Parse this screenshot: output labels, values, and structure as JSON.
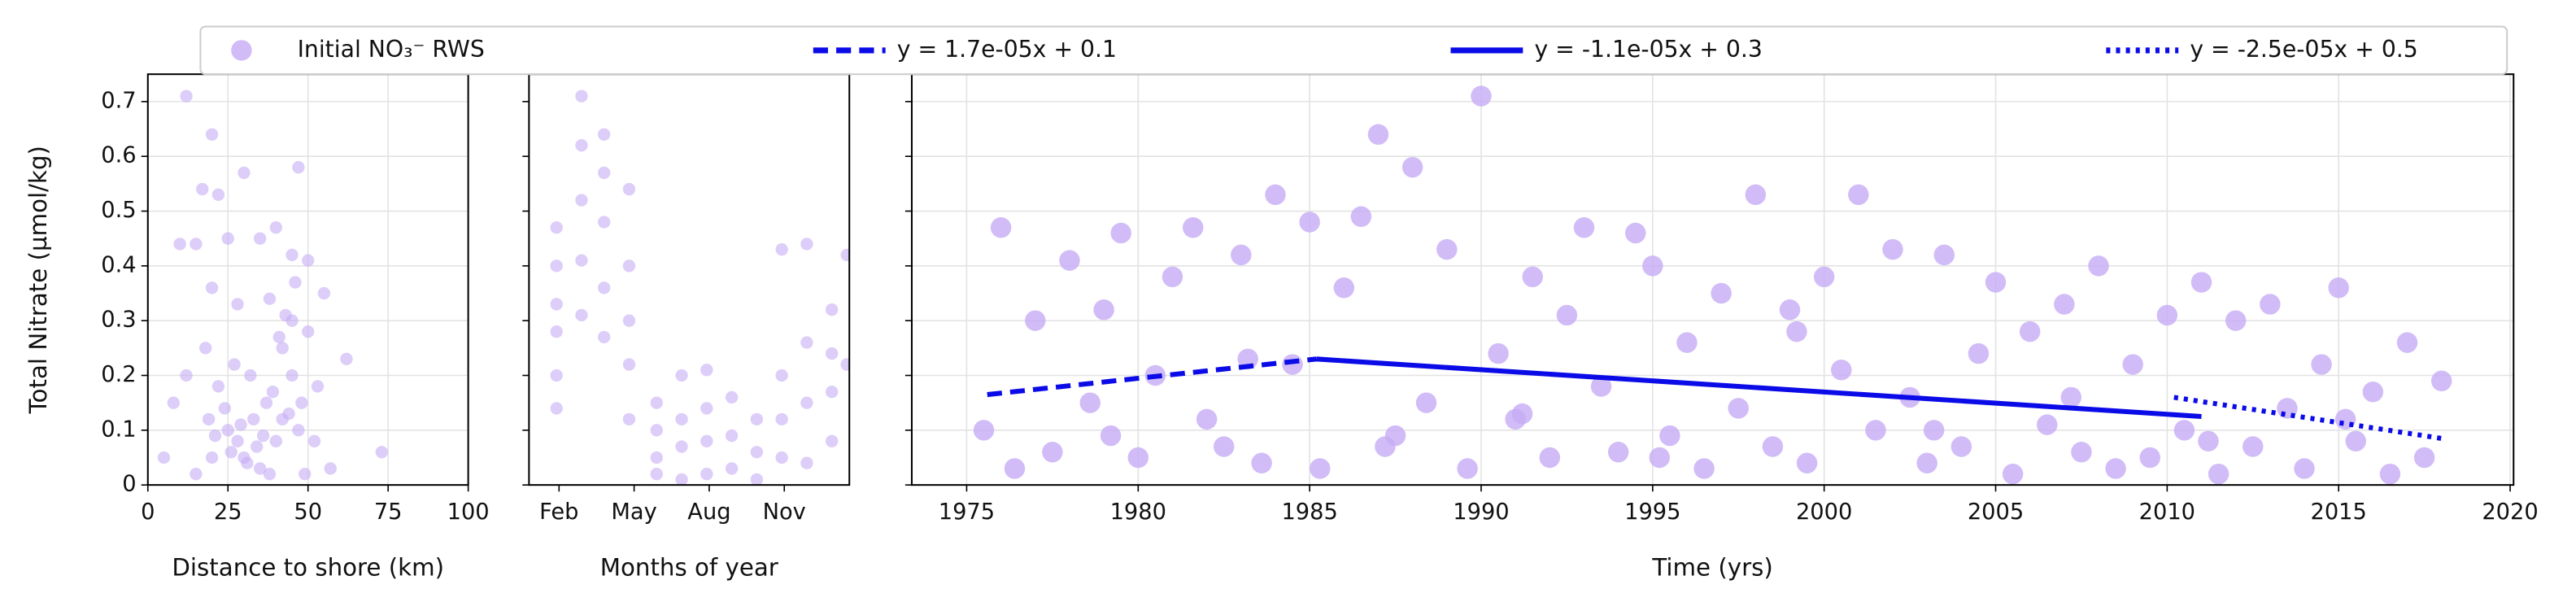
{
  "chart_data": [
    {
      "type": "scatter",
      "xlabel": "Distance to shore (km)",
      "ylabel": "Total Nitrate (µmol/kg)",
      "xlim": [
        0,
        100
      ],
      "xticks": [
        0,
        25,
        50,
        75,
        100
      ],
      "ylim": [
        0,
        0.75
      ],
      "yticks": [
        0,
        0.1,
        0.2,
        0.3,
        0.4,
        0.5,
        0.6,
        0.7
      ],
      "ytick_labels": true,
      "grid": true,
      "series": [
        {
          "kind": "scatter",
          "color": "#c6abf5",
          "x": [
            12,
            20,
            17,
            47,
            22,
            30,
            40,
            45,
            10,
            15,
            25,
            35,
            50,
            55,
            20,
            28,
            38,
            45,
            50,
            8,
            12,
            18,
            22,
            27,
            32,
            37,
            42,
            47,
            52,
            57,
            62,
            73,
            25,
            30,
            35,
            40,
            20,
            15,
            45,
            33,
            28,
            5,
            48,
            42,
            38,
            31,
            26,
            36,
            44,
            49,
            24,
            34,
            29,
            39,
            43,
            21,
            53,
            46,
            41,
            19
          ],
          "values": [
            0.71,
            0.64,
            0.54,
            0.58,
            0.53,
            0.57,
            0.47,
            0.42,
            0.44,
            0.44,
            0.45,
            0.45,
            0.41,
            0.35,
            0.36,
            0.33,
            0.34,
            0.3,
            0.28,
            0.15,
            0.2,
            0.25,
            0.18,
            0.22,
            0.2,
            0.15,
            0.12,
            0.1,
            0.08,
            0.03,
            0.23,
            0.06,
            0.1,
            0.05,
            0.03,
            0.08,
            0.05,
            0.02,
            0.2,
            0.12,
            0.08,
            0.05,
            0.15,
            0.25,
            0.02,
            0.04,
            0.06,
            0.09,
            0.13,
            0.02,
            0.14,
            0.07,
            0.11,
            0.17,
            0.31,
            0.09,
            0.18,
            0.37,
            0.27,
            0.12
          ]
        }
      ]
    },
    {
      "type": "scatter",
      "xlabel": "Months of year",
      "xlim": [
        0.8,
        13.6
      ],
      "xticks": [
        {
          "value": 2,
          "label": "Feb"
        },
        {
          "value": 5,
          "label": "May"
        },
        {
          "value": 8,
          "label": "Aug"
        },
        {
          "value": 11,
          "label": "Nov"
        }
      ],
      "ylim": [
        0,
        0.75
      ],
      "yticks": [
        0,
        0.1,
        0.2,
        0.3,
        0.4,
        0.5,
        0.6,
        0.7
      ],
      "ytick_labels": false,
      "grid": false,
      "series": [
        {
          "kind": "scatter",
          "color": "#c6abf5",
          "x": [
            1.9,
            1.9,
            1.9,
            1.9,
            1.9,
            1.9,
            2.9,
            2.9,
            2.9,
            2.9,
            2.9,
            3.8,
            3.8,
            3.8,
            3.8,
            3.8,
            4.8,
            4.8,
            4.8,
            4.8,
            4.8,
            5.9,
            5.9,
            5.9,
            5.9,
            6.9,
            6.9,
            6.9,
            6.9,
            7.9,
            7.9,
            7.9,
            7.9,
            8.9,
            8.9,
            8.9,
            9.9,
            9.9,
            9.9,
            10.9,
            10.9,
            10.9,
            10.9,
            11.9,
            11.9,
            11.9,
            11.9,
            12.9,
            12.9,
            12.9,
            12.9,
            13.5,
            13.5
          ],
          "values": [
            0.47,
            0.4,
            0.33,
            0.28,
            0.2,
            0.14,
            0.71,
            0.62,
            0.52,
            0.41,
            0.31,
            0.64,
            0.57,
            0.48,
            0.36,
            0.27,
            0.54,
            0.4,
            0.3,
            0.22,
            0.12,
            0.15,
            0.1,
            0.05,
            0.02,
            0.2,
            0.12,
            0.07,
            0.01,
            0.21,
            0.14,
            0.08,
            0.02,
            0.16,
            0.09,
            0.03,
            0.12,
            0.06,
            0.01,
            0.43,
            0.2,
            0.12,
            0.05,
            0.44,
            0.26,
            0.15,
            0.04,
            0.32,
            0.24,
            0.17,
            0.08,
            0.42,
            0.22
          ]
        }
      ]
    },
    {
      "type": "scatter",
      "xlabel": "Time (yrs)",
      "xlim": [
        1973.4,
        2020.1
      ],
      "xticks": [
        1975,
        1980,
        1985,
        1990,
        1995,
        2000,
        2005,
        2010,
        2015,
        2020
      ],
      "ylim": [
        0,
        0.75
      ],
      "yticks": [
        0,
        0.1,
        0.2,
        0.3,
        0.4,
        0.5,
        0.6,
        0.7
      ],
      "ytick_labels": false,
      "grid": true,
      "series": [
        {
          "kind": "scatter",
          "name": "Initial NO₃⁻ RWS",
          "color": "#c6abf5",
          "x": [
            1975.5,
            1976,
            1976.4,
            1977,
            1977.5,
            1978,
            1978.6,
            1979,
            1979.5,
            1980,
            1980.5,
            1981,
            1981.6,
            1982,
            1982.5,
            1983,
            1983.6,
            1984,
            1984.5,
            1985,
            1985.3,
            1986,
            1986.5,
            1987,
            1987.5,
            1988,
            1988.4,
            1989,
            1989.6,
            1990,
            1990.5,
            1991,
            1991.5,
            1992,
            1992.5,
            1993,
            1993.5,
            1994,
            1994.5,
            1995,
            1995.5,
            1996,
            1996.5,
            1997,
            1997.5,
            1998,
            1998.5,
            1999,
            1999.5,
            2000,
            2000.5,
            2001,
            2001.5,
            2002,
            2002.5,
            2003,
            2003.5,
            2004,
            2004.5,
            2005,
            2005.5,
            2006,
            2006.5,
            2007,
            2007.5,
            2008,
            2008.5,
            2009,
            2009.5,
            2010,
            2010.5,
            2011,
            2011.5,
            2012,
            2012.5,
            2013,
            2013.5,
            2014,
            2014.5,
            2015,
            2015.5,
            2016,
            2016.5,
            2017,
            2017.5,
            2018,
            1979.2,
            1983.2,
            1987.2,
            1991.2,
            1995.2,
            1999.2,
            2003.2,
            2007.2,
            2011.2,
            2015.2
          ],
          "values": [
            0.1,
            0.47,
            0.03,
            0.3,
            0.06,
            0.41,
            0.15,
            0.32,
            0.46,
            0.05,
            0.2,
            0.38,
            0.47,
            0.12,
            0.07,
            0.42,
            0.04,
            0.53,
            0.22,
            0.48,
            0.03,
            0.36,
            0.49,
            0.64,
            0.09,
            0.58,
            0.15,
            0.43,
            0.03,
            0.71,
            0.24,
            0.12,
            0.38,
            0.05,
            0.31,
            0.47,
            0.18,
            0.06,
            0.46,
            0.4,
            0.09,
            0.26,
            0.03,
            0.35,
            0.14,
            0.53,
            0.07,
            0.32,
            0.04,
            0.38,
            0.21,
            0.53,
            0.1,
            0.43,
            0.16,
            0.04,
            0.42,
            0.07,
            0.24,
            0.37,
            0.02,
            0.28,
            0.11,
            0.33,
            0.06,
            0.4,
            0.03,
            0.22,
            0.05,
            0.31,
            0.1,
            0.37,
            0.02,
            0.3,
            0.07,
            0.33,
            0.14,
            0.03,
            0.22,
            0.36,
            0.08,
            0.17,
            0.02,
            0.26,
            0.05,
            0.19,
            0.09,
            0.23,
            0.07,
            0.13,
            0.05,
            0.28,
            0.1,
            0.16,
            0.08,
            0.12
          ]
        },
        {
          "kind": "line",
          "name": "y = 1.7e-05x + 0.1",
          "color": "#0b0be8",
          "dash": "9 5",
          "x": [
            1975.6,
            1985.2
          ],
          "values": [
            0.165,
            0.23
          ]
        },
        {
          "kind": "line",
          "name": "y = -1.1e-05x + 0.3",
          "color": "#0b0be8",
          "dash": "none",
          "x": [
            1985.2,
            2011
          ],
          "values": [
            0.23,
            0.125
          ]
        },
        {
          "kind": "line",
          "name": "y = -2.5e-05x + 0.5",
          "color": "#0b0be8",
          "dash": "2.5 3.5",
          "x": [
            2010.2,
            2018
          ],
          "values": [
            0.16,
            0.085
          ]
        }
      ]
    }
  ]
}
